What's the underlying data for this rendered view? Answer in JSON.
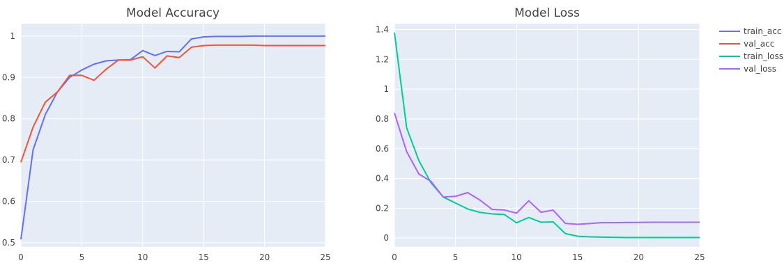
{
  "chart_data": [
    {
      "type": "line",
      "title": "Model Accuracy",
      "xlabel": "",
      "ylabel": "",
      "xlim": [
        0,
        25
      ],
      "ylim": [
        0.49,
        1.03
      ],
      "xticks": [
        "0",
        "5",
        "10",
        "15",
        "20",
        "25"
      ],
      "yticks": [
        "0.5",
        "0.6",
        "0.7",
        "0.8",
        "0.9",
        "1"
      ],
      "grid": true,
      "x": [
        0,
        1,
        2,
        3,
        4,
        5,
        6,
        7,
        8,
        9,
        10,
        11,
        12,
        13,
        14,
        15,
        16,
        17,
        18,
        19,
        20,
        21,
        22,
        23,
        24,
        25
      ],
      "series": [
        {
          "name": "train_acc",
          "color": "#636efa",
          "values": [
            0.508,
            0.725,
            0.81,
            0.865,
            0.9,
            0.918,
            0.932,
            0.94,
            0.942,
            0.943,
            0.965,
            0.953,
            0.963,
            0.962,
            0.993,
            0.998,
            0.999,
            0.999,
            0.999,
            1.0,
            1.0,
            1.0,
            1.0,
            1.0,
            1.0,
            1.0
          ]
        },
        {
          "name": "val_acc",
          "color": "#ef553b",
          "values": [
            0.695,
            0.78,
            0.84,
            0.865,
            0.905,
            0.905,
            0.893,
            0.92,
            0.942,
            0.942,
            0.95,
            0.923,
            0.952,
            0.948,
            0.973,
            0.977,
            0.978,
            0.978,
            0.978,
            0.978,
            0.977,
            0.977,
            0.977,
            0.977,
            0.977,
            0.977
          ]
        }
      ]
    },
    {
      "type": "line",
      "title": "Model Loss",
      "xlabel": "",
      "ylabel": "",
      "xlim": [
        0,
        25
      ],
      "ylim": [
        -0.06,
        1.44
      ],
      "xticks": [
        "0",
        "5",
        "10",
        "15",
        "20",
        "25"
      ],
      "yticks": [
        "0",
        "0.2",
        "0.4",
        "0.6",
        "0.8",
        "1",
        "1.2",
        "1.4"
      ],
      "grid": true,
      "x": [
        0,
        1,
        2,
        3,
        4,
        5,
        6,
        7,
        8,
        9,
        10,
        11,
        12,
        13,
        14,
        15,
        16,
        17,
        18,
        19,
        20,
        21,
        22,
        23,
        24,
        25
      ],
      "series": [
        {
          "name": "train_loss",
          "color": "#00cc96",
          "values": [
            1.38,
            0.74,
            0.52,
            0.37,
            0.275,
            0.235,
            0.195,
            0.172,
            0.162,
            0.158,
            0.102,
            0.138,
            0.106,
            0.108,
            0.03,
            0.012,
            0.008,
            0.006,
            0.004,
            0.003,
            0.003,
            0.003,
            0.003,
            0.003,
            0.003,
            0.003
          ]
        },
        {
          "name": "val_loss",
          "color": "#ab63fa",
          "values": [
            0.84,
            0.58,
            0.43,
            0.38,
            0.275,
            0.28,
            0.305,
            0.255,
            0.192,
            0.188,
            0.167,
            0.25,
            0.173,
            0.187,
            0.098,
            0.092,
            0.097,
            0.103,
            0.103,
            0.104,
            0.105,
            0.106,
            0.106,
            0.106,
            0.106,
            0.106
          ]
        }
      ]
    }
  ],
  "legend": {
    "placement": "top-right",
    "items": [
      {
        "label": "train_acc",
        "color": "#636efa"
      },
      {
        "label": "val_acc",
        "color": "#ef553b"
      },
      {
        "label": "train_loss",
        "color": "#00cc96"
      },
      {
        "label": "val_loss",
        "color": "#ab63fa"
      }
    ]
  },
  "colors": {
    "plot_bg": "#e5ecf6",
    "grid": "#ffffff",
    "text": "#444444"
  }
}
